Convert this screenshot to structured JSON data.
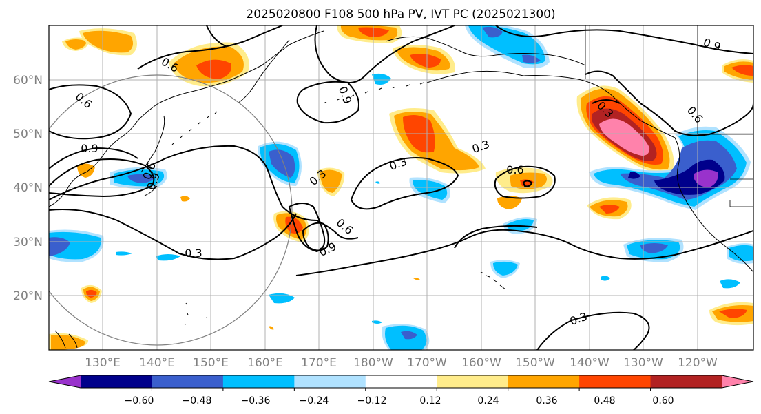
{
  "title": "2025020800 F108 500 hPa PV, IVT PC (2025021300)",
  "map": {
    "lat_labels": [
      "60°N",
      "50°N",
      "40°N",
      "30°N",
      "20°N"
    ],
    "lon_labels": [
      "130°E",
      "140°E",
      "150°E",
      "160°E",
      "170°E",
      "180°W",
      "170°W",
      "160°W",
      "150°W",
      "140°W",
      "130°W",
      "120°W"
    ],
    "contour_labels": [
      "0.6",
      "0.6",
      "0.9",
      "0.9",
      "0.3",
      "0.3",
      "0.3",
      "0.6",
      "0.9",
      "0.6",
      "0.3",
      "0.3",
      "0.3",
      "0.9",
      "0.6",
      "0.6",
      "0.9"
    ],
    "contour_color": "#000000",
    "gridline_color": "#b0b0b0",
    "coastline_color": "#000000",
    "circle_color": "#808080"
  },
  "colorbar": {
    "tick_labels": [
      "−0.60",
      "−0.48",
      "−0.36",
      "−0.24",
      "−0.12",
      "0.12",
      "0.24",
      "0.36",
      "0.48",
      "0.60"
    ],
    "colors": [
      "#9932cc",
      "#00008b",
      "#3a5fcd",
      "#00bfff",
      "#b0e2ff",
      "#ffffff",
      "#ffec8b",
      "#ffa500",
      "#ff4500",
      "#b22222",
      "#ff82ab"
    ]
  }
}
